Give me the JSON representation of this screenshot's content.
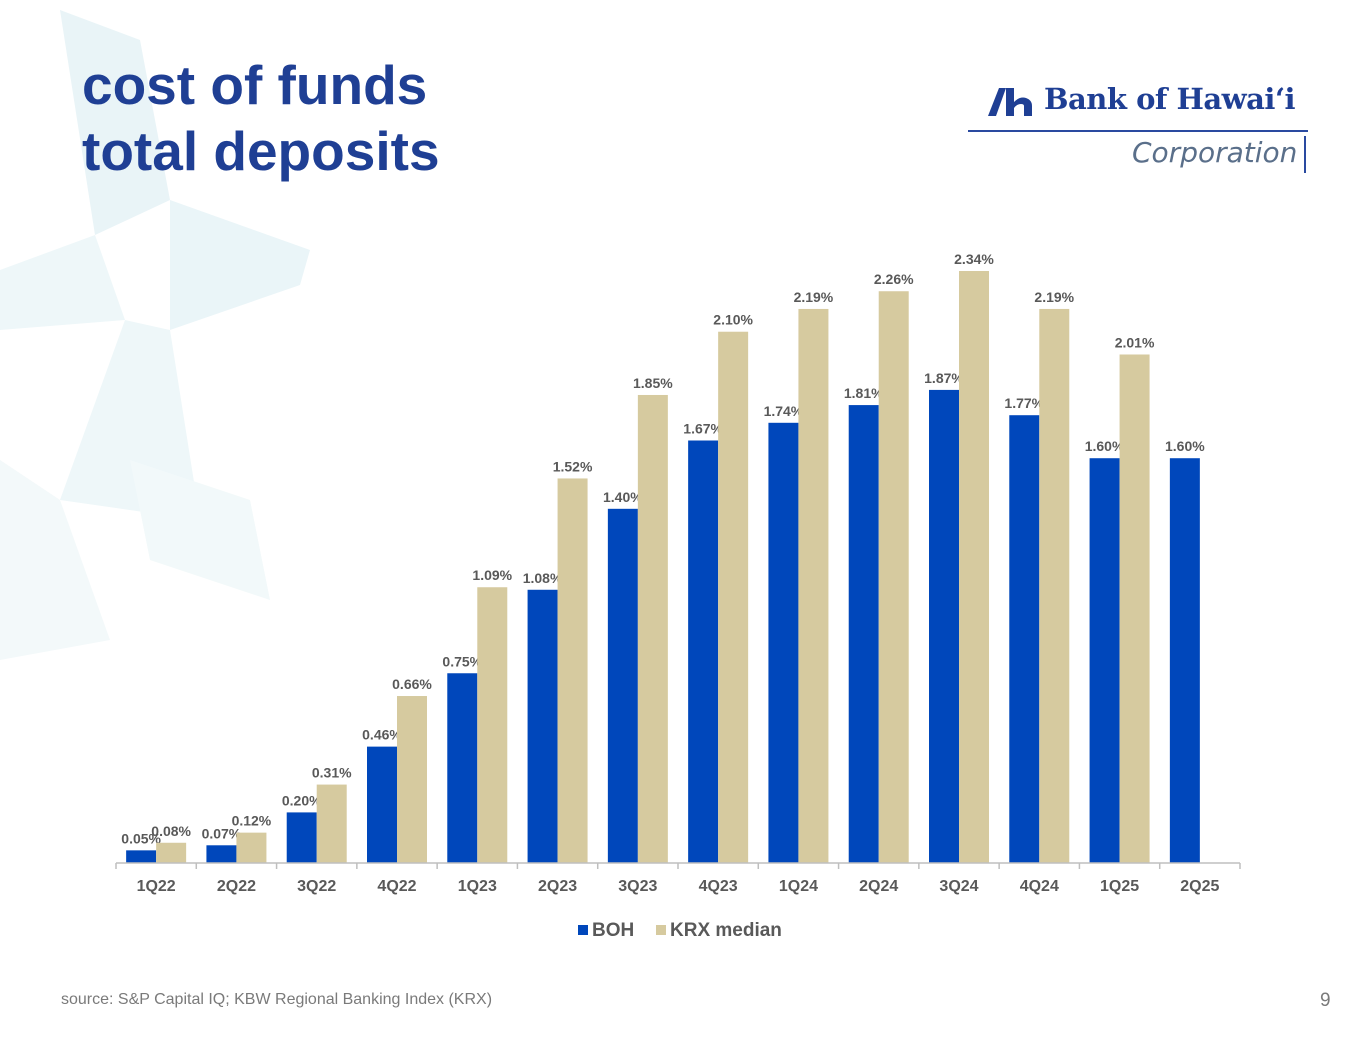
{
  "slide": {
    "title_line1": "cost of funds",
    "title_line2": "total deposits",
    "source": "source: S&P Capital IQ; KBW Regional Banking Index (KRX)",
    "page_number": "9"
  },
  "logo": {
    "name": "Bank of Hawaiʻi",
    "subtitle": "Corporation",
    "mark_icon": "boh-h-mark-icon"
  },
  "colors": {
    "title": "#1f3f94",
    "boh": "#0047bb",
    "krx": "#d6ca9f",
    "label": "#595959",
    "axis": "#bfbfbf",
    "background_star": "#e9f4f7"
  },
  "chart_data": {
    "type": "bar",
    "categories": [
      "1Q22",
      "2Q22",
      "3Q22",
      "4Q22",
      "1Q23",
      "2Q23",
      "3Q23",
      "4Q23",
      "1Q24",
      "2Q24",
      "3Q24",
      "4Q24",
      "1Q25",
      "2Q25"
    ],
    "series": [
      {
        "name": "BOH",
        "values": [
          0.05,
          0.07,
          0.2,
          0.46,
          0.75,
          1.08,
          1.4,
          1.67,
          1.74,
          1.81,
          1.87,
          1.77,
          1.6,
          1.6
        ]
      },
      {
        "name": "KRX median",
        "values": [
          0.08,
          0.12,
          0.31,
          0.66,
          1.09,
          1.52,
          1.85,
          2.1,
          2.19,
          2.26,
          2.34,
          2.19,
          2.01,
          null
        ]
      }
    ],
    "data_labels": [
      [
        "0.05%",
        "0.07%",
        "0.20%",
        "0.46%",
        "0.75%",
        "1.08%",
        "1.40%",
        "1.67%",
        "1.74%",
        "1.81%",
        "1.87%",
        "1.77%",
        "1.60%",
        "1.60%"
      ],
      [
        "0.08%",
        "0.12%",
        "0.31%",
        "0.66%",
        "1.09%",
        "1.52%",
        "1.85%",
        "2.10%",
        "2.19%",
        "2.26%",
        "2.34%",
        "2.19%",
        "2.01%",
        ""
      ]
    ],
    "ylim": [
      0,
      2.34
    ],
    "grid": false,
    "legend_position": "bottom"
  }
}
